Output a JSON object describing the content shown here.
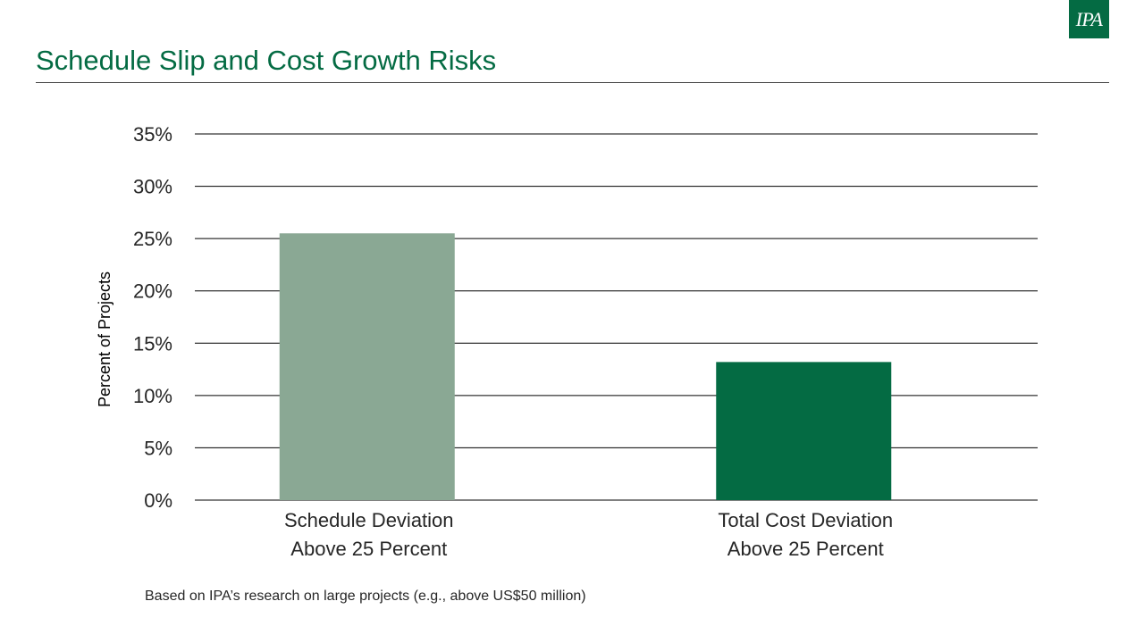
{
  "header": {
    "title": "Schedule Slip and Cost Growth Risks",
    "logo_text": "IPA"
  },
  "footnote": "Based on IPA’s research on large projects (e.g., above US$50 million)",
  "colors": {
    "brand_green": "#046b43",
    "bar_light": "#8aa894",
    "bar_dark": "#046b43",
    "gridline": "#000000",
    "text": "#262626"
  },
  "chart_data": {
    "type": "bar",
    "title": "",
    "categories": [
      [
        "Schedule Deviation",
        "Above 25 Percent"
      ],
      [
        "Total Cost Deviation",
        "Above 25 Percent"
      ]
    ],
    "values": [
      25.5,
      13.2
    ],
    "bar_colors": [
      "#8aa894",
      "#046b43"
    ],
    "xlabel": "",
    "ylabel": "Percent of Projects",
    "ylim": [
      0,
      35
    ],
    "yticks": [
      0,
      5,
      10,
      15,
      20,
      25,
      30,
      35
    ],
    "ytick_labels": [
      "0%",
      "5%",
      "10%",
      "15%",
      "20%",
      "25%",
      "30%",
      "35%"
    ],
    "grid": true,
    "legend": "none"
  }
}
